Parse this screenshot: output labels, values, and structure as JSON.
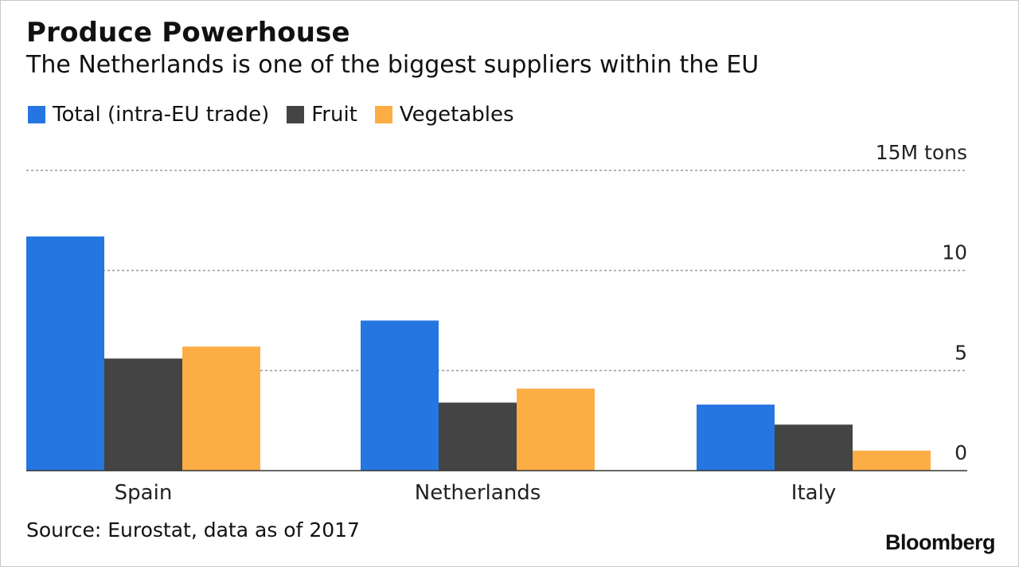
{
  "header": {
    "title": "Produce Powerhouse",
    "subtitle": "The Netherlands is one of the biggest suppliers within the EU"
  },
  "legend": [
    {
      "label": "Total (intra-EU trade)",
      "color": "#2576e0"
    },
    {
      "label": "Fruit",
      "color": "#444444"
    },
    {
      "label": "Vegetables",
      "color": "#fcae45"
    }
  ],
  "chart_data": {
    "type": "bar",
    "categories": [
      "Spain",
      "Netherlands",
      "Italy"
    ],
    "series": [
      {
        "name": "Total (intra-EU trade)",
        "color": "#2576e0",
        "values": [
          11.7,
          7.5,
          3.3
        ]
      },
      {
        "name": "Fruit",
        "color": "#444444",
        "values": [
          5.6,
          3.4,
          2.3
        ]
      },
      {
        "name": "Vegetables",
        "color": "#fcae45",
        "values": [
          6.2,
          4.1,
          1.0
        ]
      }
    ],
    "yticks": [
      {
        "value": 0,
        "label": "0"
      },
      {
        "value": 5,
        "label": "5"
      },
      {
        "value": 10,
        "label": "10"
      },
      {
        "value": 15,
        "label": "15M tons"
      }
    ],
    "ylim": [
      0,
      15
    ],
    "grid": true,
    "legend_position": "top-left"
  },
  "footer": {
    "source": "Source: Eurostat, data as of 2017",
    "brand": "Bloomberg"
  }
}
